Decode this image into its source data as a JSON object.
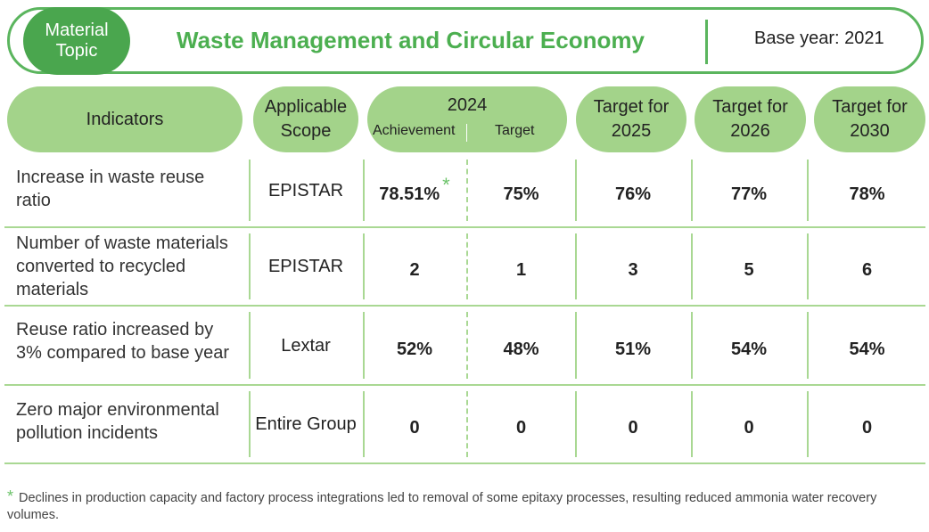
{
  "header": {
    "topic_label": "Material Topic",
    "title": "Waste Management and Circular Economy",
    "base_year": "Base year: 2021"
  },
  "columns": {
    "indicators": "Indicators",
    "scope": "Applicable Scope",
    "year": "2024",
    "achievement": "Achievement",
    "target": "Target",
    "t2025": "Target for 2025",
    "t2026": "Target for 2026",
    "t2030": "Target for 2030"
  },
  "rows": [
    {
      "indicator": "Increase in waste reuse ratio",
      "scope": "EPISTAR",
      "achievement": "78.51%",
      "star": "*",
      "target": "75%",
      "t2025": "76%",
      "t2026": "77%",
      "t2030": "78%"
    },
    {
      "indicator": "Number of waste materials converted to recycled materials",
      "scope": "EPISTAR",
      "achievement": "2",
      "target": "1",
      "t2025": "3",
      "t2026": "5",
      "t2030": "6"
    },
    {
      "indicator": "Reuse ratio increased by 3% compared to base year",
      "scope": "Lextar",
      "achievement": "52%",
      "target": "48%",
      "t2025": "51%",
      "t2026": "54%",
      "t2030": "54%"
    },
    {
      "indicator": "Zero major environmental pollution incidents",
      "scope": "Entire Group",
      "achievement": "0",
      "target": "0",
      "t2025": "0",
      "t2026": "0",
      "t2030": "0"
    }
  ],
  "footnote": {
    "marker": "*",
    "text": "Declines in production capacity and factory process integrations led to removal of some epitaxy processes, resulting reduced ammonia water recovery volumes."
  },
  "colors": {
    "dark_green": "#4aa64e",
    "light_green": "#a3d38a",
    "title_green": "#4caf50"
  }
}
